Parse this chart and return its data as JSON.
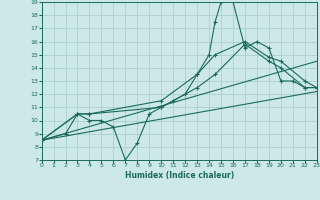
{
  "title": "",
  "xlabel": "Humidex (Indice chaleur)",
  "bg_color": "#cce8e8",
  "line_color": "#1a6b5a",
  "grid_color": "#aad0d0",
  "xmin": 0,
  "xmax": 23,
  "ymin": 7,
  "ymax": 19,
  "xticks": [
    0,
    1,
    2,
    3,
    4,
    5,
    6,
    7,
    8,
    9,
    10,
    11,
    12,
    13,
    14,
    15,
    16,
    17,
    18,
    19,
    20,
    21,
    22,
    23
  ],
  "yticks": [
    7,
    8,
    9,
    10,
    11,
    12,
    13,
    14,
    15,
    16,
    17,
    18,
    19
  ],
  "line1_x": [
    0,
    2,
    3,
    4,
    5,
    6,
    7,
    8,
    9,
    10,
    11,
    12,
    13,
    14,
    14.5,
    15,
    16,
    17,
    18,
    19,
    20,
    21,
    22,
    23
  ],
  "line1_y": [
    8.5,
    9.0,
    10.5,
    10.0,
    10.0,
    9.5,
    7.0,
    8.3,
    10.5,
    11.0,
    11.5,
    12.0,
    13.5,
    15.0,
    17.5,
    19.0,
    19.0,
    15.5,
    16.0,
    15.5,
    13.0,
    13.0,
    12.5,
    12.5
  ],
  "line2_x": [
    0,
    3,
    4,
    10,
    13,
    14.5,
    17,
    19,
    20,
    22,
    23
  ],
  "line2_y": [
    8.5,
    10.5,
    10.5,
    11.5,
    13.5,
    15.0,
    16.0,
    14.8,
    14.5,
    13.0,
    12.5
  ],
  "line3_x": [
    0,
    3,
    4,
    10,
    13,
    14.5,
    17,
    19,
    20,
    22,
    23
  ],
  "line3_y": [
    8.5,
    10.5,
    10.5,
    11.0,
    12.5,
    13.5,
    15.8,
    14.5,
    14.0,
    12.5,
    12.5
  ],
  "line4_x": [
    0,
    23
  ],
  "line4_y": [
    8.5,
    14.5
  ],
  "line5_x": [
    0,
    23
  ],
  "line5_y": [
    8.5,
    12.2
  ]
}
